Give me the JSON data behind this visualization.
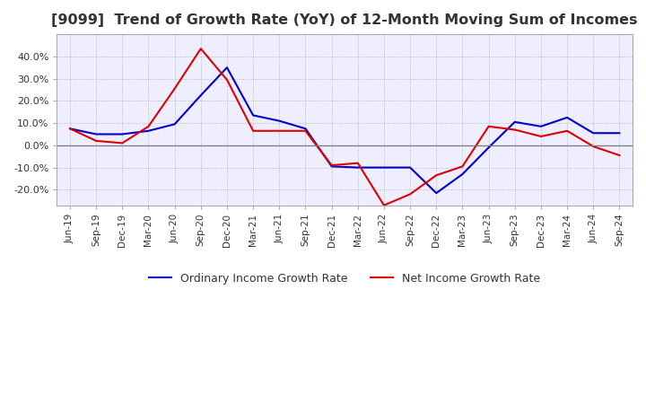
{
  "title": "[9099]  Trend of Growth Rate (YoY) of 12-Month Moving Sum of Incomes",
  "title_fontsize": 11.5,
  "ylim": [
    -0.27,
    0.5
  ],
  "yticks": [
    -0.2,
    -0.1,
    0.0,
    0.1,
    0.2,
    0.3,
    0.4
  ],
  "background_color": "#ffffff",
  "plot_bg_color": "#eeeeff",
  "grid_color": "#aaaaaa",
  "legend_labels": [
    "Ordinary Income Growth Rate",
    "Net Income Growth Rate"
  ],
  "line_colors": [
    "#0000cc",
    "#dd0000"
  ],
  "x_labels": [
    "Jun-19",
    "Sep-19",
    "Dec-19",
    "Mar-20",
    "Jun-20",
    "Sep-20",
    "Dec-20",
    "Mar-21",
    "Jun-21",
    "Sep-21",
    "Dec-21",
    "Mar-22",
    "Jun-22",
    "Sep-22",
    "Dec-22",
    "Mar-23",
    "Jun-23",
    "Sep-23",
    "Dec-23",
    "Mar-24",
    "Jun-24",
    "Sep-24"
  ],
  "ordinary_income": [
    0.075,
    0.05,
    0.05,
    0.065,
    0.095,
    0.225,
    0.35,
    0.135,
    0.11,
    0.075,
    -0.095,
    -0.1,
    -0.1,
    -0.1,
    -0.215,
    -0.13,
    -0.01,
    0.105,
    0.085,
    0.125,
    0.055,
    0.055
  ],
  "net_income": [
    0.075,
    0.02,
    0.01,
    0.085,
    0.255,
    0.435,
    0.295,
    0.065,
    0.065,
    0.065,
    -0.09,
    -0.08,
    -0.27,
    -0.22,
    -0.135,
    -0.095,
    0.085,
    0.07,
    0.04,
    0.065,
    -0.005,
    -0.045
  ]
}
